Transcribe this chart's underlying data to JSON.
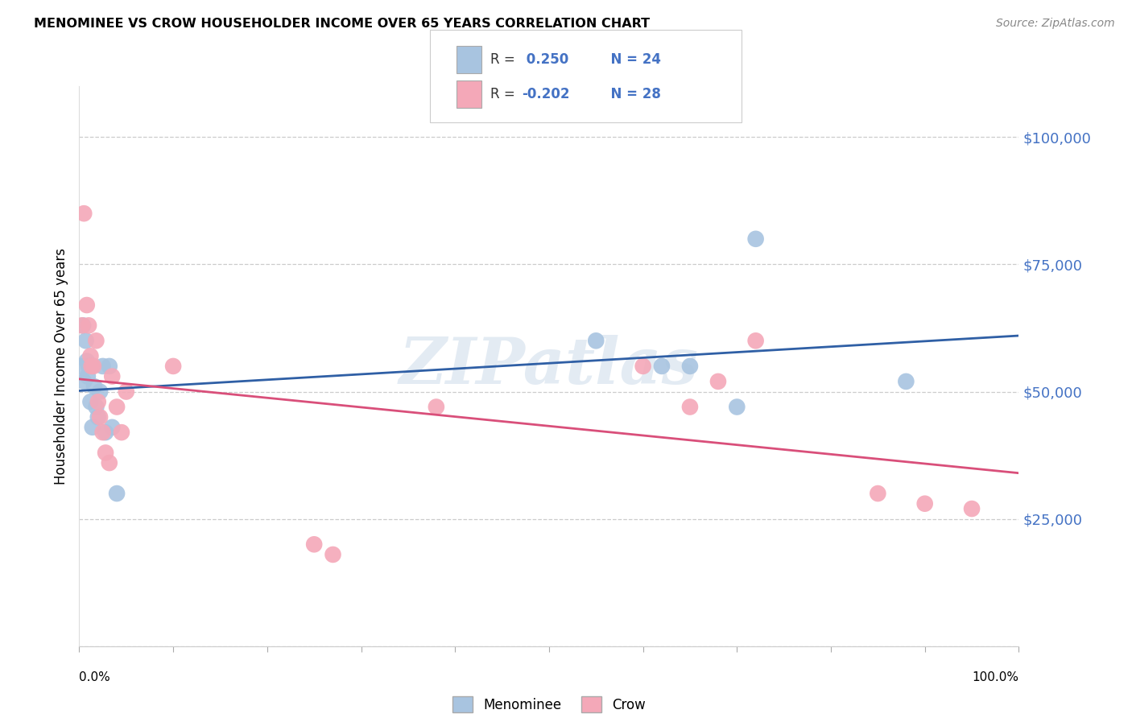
{
  "title": "MENOMINEE VS CROW HOUSEHOLDER INCOME OVER 65 YEARS CORRELATION CHART",
  "source": "Source: ZipAtlas.com",
  "ylabel": "Householder Income Over 65 years",
  "legend_labels": [
    "Menominee",
    "Crow"
  ],
  "yticks": [
    0,
    25000,
    50000,
    75000,
    100000
  ],
  "ytick_labels": [
    "",
    "$25,000",
    "$50,000",
    "$75,000",
    "$100,000"
  ],
  "ymin": 0,
  "ymax": 110000,
  "xmin": 0,
  "xmax": 1.0,
  "menominee_color": "#a8c4e0",
  "crow_color": "#f4a8b8",
  "menominee_line_color": "#2f5fa5",
  "crow_line_color": "#d94f7a",
  "blue_text_color": "#4472c4",
  "background_color": "#ffffff",
  "grid_color": "#cccccc",
  "watermark": "ZIPatlas",
  "menominee_x": [
    0.002,
    0.004,
    0.005,
    0.007,
    0.008,
    0.009,
    0.01,
    0.012,
    0.014,
    0.016,
    0.018,
    0.02,
    0.022,
    0.025,
    0.028,
    0.032,
    0.035,
    0.04,
    0.55,
    0.62,
    0.65,
    0.7,
    0.72,
    0.88
  ],
  "menominee_y": [
    55000,
    63000,
    52000,
    60000,
    56000,
    53000,
    55000,
    48000,
    43000,
    51000,
    47000,
    45000,
    50000,
    55000,
    42000,
    55000,
    43000,
    30000,
    60000,
    55000,
    55000,
    47000,
    80000,
    52000
  ],
  "crow_x": [
    0.003,
    0.005,
    0.008,
    0.01,
    0.012,
    0.013,
    0.015,
    0.018,
    0.02,
    0.022,
    0.025,
    0.028,
    0.032,
    0.035,
    0.04,
    0.045,
    0.05,
    0.1,
    0.25,
    0.27,
    0.38,
    0.6,
    0.65,
    0.68,
    0.72,
    0.85,
    0.9,
    0.95
  ],
  "crow_y": [
    63000,
    85000,
    67000,
    63000,
    57000,
    55000,
    55000,
    60000,
    48000,
    45000,
    42000,
    38000,
    36000,
    53000,
    47000,
    42000,
    50000,
    55000,
    20000,
    18000,
    47000,
    55000,
    47000,
    52000,
    60000,
    30000,
    28000,
    27000
  ]
}
